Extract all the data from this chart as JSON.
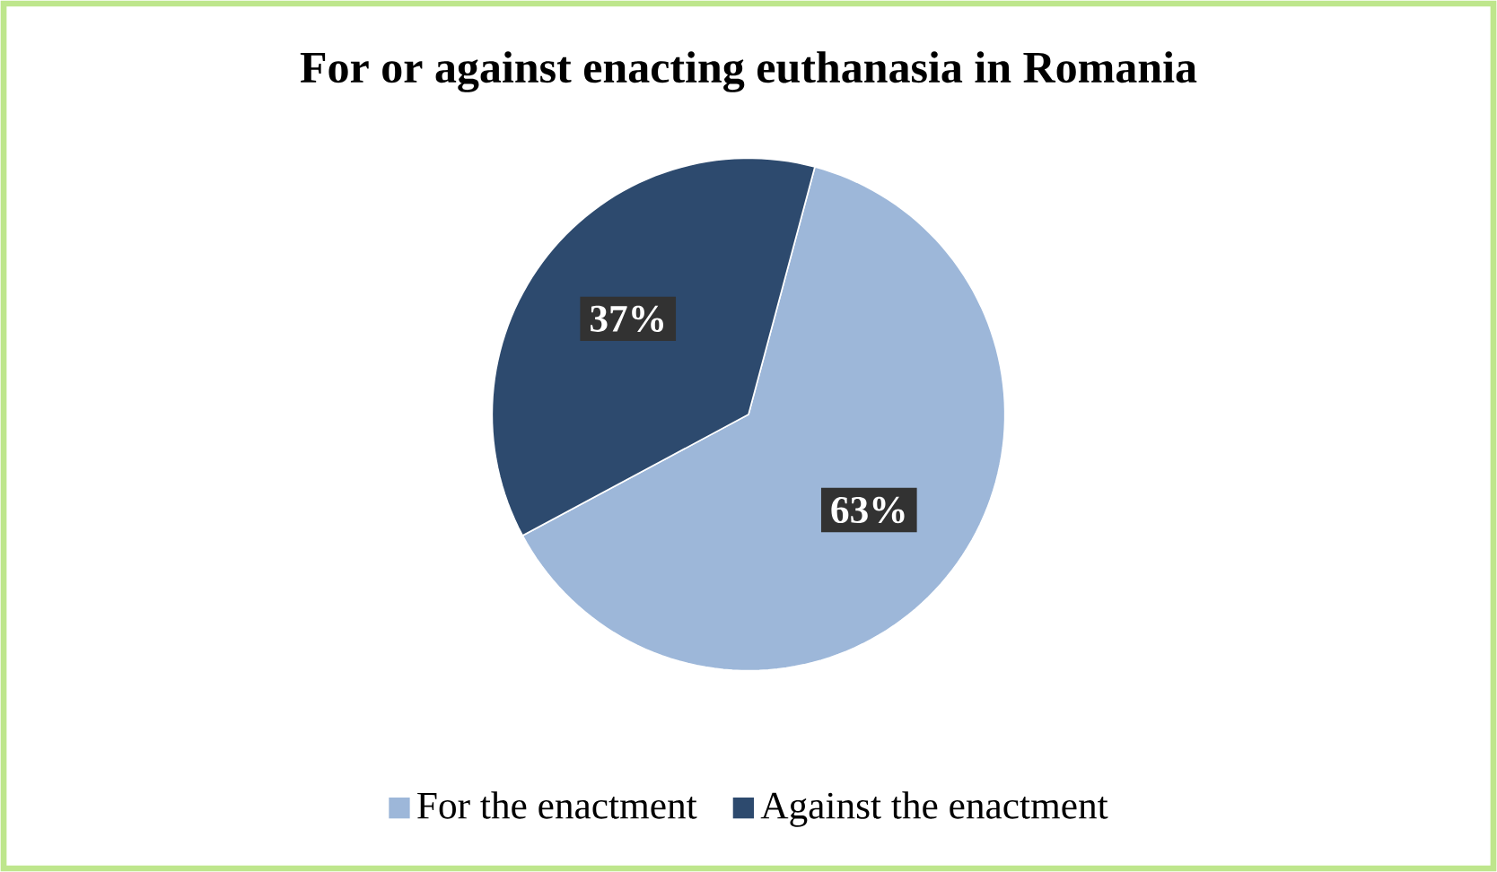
{
  "chart_data": {
    "type": "pie",
    "title": "For or against enacting euthanasia in Romania",
    "categories": [
      "For the enactment",
      "Against the enactment"
    ],
    "values": [
      63,
      37
    ],
    "colors": [
      "#9db7d9",
      "#2d4a6e"
    ],
    "value_labels": [
      "63%",
      "37%"
    ],
    "legend": "bottom"
  }
}
